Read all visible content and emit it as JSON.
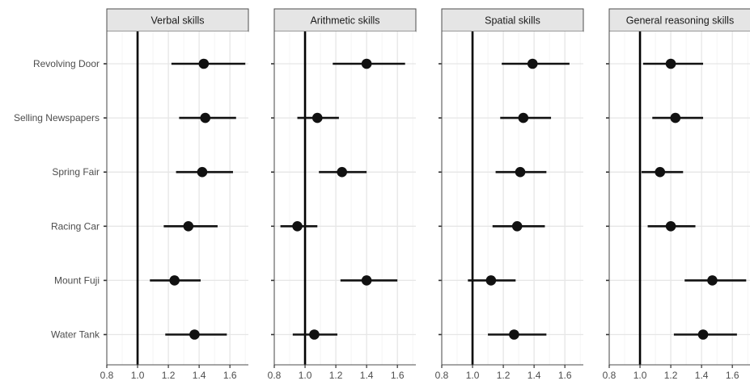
{
  "chart_data": {
    "type": "scatter",
    "subtype": "forest-plot-faceted",
    "categories": [
      "Revolving Door",
      "Selling Newspapers",
      "Spring Fair",
      "Racing Car",
      "Mount Fuji",
      "Water Tank"
    ],
    "xlim": [
      0.8,
      1.72
    ],
    "x_ticks": [
      0.8,
      1.0,
      1.2,
      1.4,
      1.6
    ],
    "x_tick_labels": [
      "0.8",
      "1.0",
      "1.2",
      "1.4",
      "1.6"
    ],
    "reference_line": 1.0,
    "grid": true,
    "facets": [
      {
        "label": "Verbal skills",
        "estimates": [
          1.43,
          1.44,
          1.42,
          1.33,
          1.24,
          1.37
        ],
        "lower": [
          1.22,
          1.27,
          1.25,
          1.17,
          1.08,
          1.18
        ],
        "upper": [
          1.7,
          1.64,
          1.62,
          1.52,
          1.41,
          1.58
        ]
      },
      {
        "label": "Arithmetic skills",
        "estimates": [
          1.4,
          1.08,
          1.24,
          0.95,
          1.4,
          1.06
        ],
        "lower": [
          1.18,
          0.95,
          1.09,
          0.84,
          1.23,
          0.92
        ],
        "upper": [
          1.65,
          1.22,
          1.4,
          1.08,
          1.6,
          1.21
        ]
      },
      {
        "label": "Spatial skills",
        "estimates": [
          1.39,
          1.33,
          1.31,
          1.29,
          1.12,
          1.27
        ],
        "lower": [
          1.19,
          1.18,
          1.15,
          1.13,
          0.97,
          1.1
        ],
        "upper": [
          1.63,
          1.51,
          1.48,
          1.47,
          1.28,
          1.48
        ]
      },
      {
        "label": "General reasoning skills",
        "estimates": [
          1.2,
          1.23,
          1.13,
          1.2,
          1.47,
          1.41
        ],
        "lower": [
          1.02,
          1.08,
          1.01,
          1.05,
          1.29,
          1.22
        ],
        "upper": [
          1.41,
          1.41,
          1.28,
          1.36,
          1.69,
          1.63
        ]
      }
    ]
  },
  "style": {
    "point_color": "#111111",
    "line_color": "#111111",
    "grid_major": "#e6e6e6",
    "grid_minor": "#f2f2f2",
    "strip_fill": "#e5e5e5",
    "strip_border": "#4d4d4d",
    "panel_border": "#4d4d4d",
    "tick_text": "#4d4d4d",
    "strip_text": "#1a1a1a"
  }
}
